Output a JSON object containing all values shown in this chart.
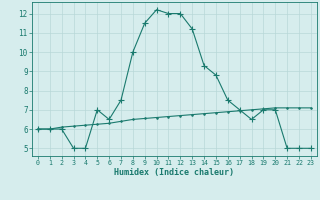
{
  "title": "",
  "xlabel": "Humidex (Indice chaleur)",
  "x": [
    0,
    1,
    2,
    3,
    4,
    5,
    6,
    7,
    8,
    9,
    10,
    11,
    12,
    13,
    14,
    15,
    16,
    17,
    18,
    19,
    20,
    21,
    22,
    23
  ],
  "y_main": [
    6,
    6,
    6,
    5,
    5,
    7,
    6.5,
    7.5,
    10,
    11.5,
    12.2,
    12,
    12,
    11.2,
    9.3,
    8.8,
    7.5,
    7,
    6.5,
    7,
    7,
    5,
    5,
    5
  ],
  "y_ref": [
    6,
    6,
    6.1,
    6.15,
    6.2,
    6.25,
    6.3,
    6.4,
    6.5,
    6.55,
    6.6,
    6.65,
    6.7,
    6.75,
    6.8,
    6.85,
    6.9,
    6.95,
    7.0,
    7.05,
    7.1,
    7.1,
    7.1,
    7.1
  ],
  "line_color": "#1a7a6e",
  "bg_color": "#d6eded",
  "grid_color": "#b8d8d8",
  "ylim": [
    4.6,
    12.6
  ],
  "xlim": [
    -0.5,
    23.5
  ],
  "yticks": [
    5,
    6,
    7,
    8,
    9,
    10,
    11,
    12
  ],
  "xticks": [
    0,
    1,
    2,
    3,
    4,
    5,
    6,
    7,
    8,
    9,
    10,
    11,
    12,
    13,
    14,
    15,
    16,
    17,
    18,
    19,
    20,
    21,
    22,
    23
  ]
}
